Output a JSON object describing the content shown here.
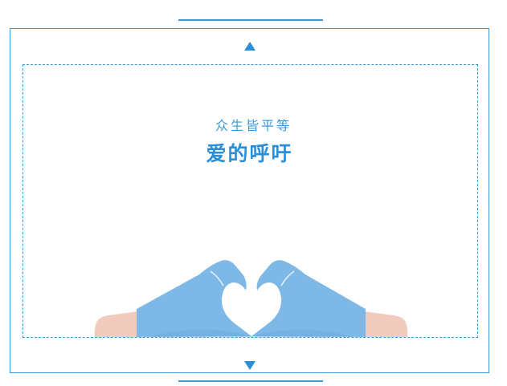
{
  "card": {
    "subtitle": "众生皆平等",
    "title": "爱的呼吁"
  },
  "colors": {
    "accent": "#2a8fd6",
    "frame": "#3a9ad9",
    "glove": "#7eb8e6",
    "skin": "#f2cbbf"
  },
  "icons": {
    "top": "triangle-up-icon",
    "bottom": "triangle-down-icon",
    "illustration": "heart-hands-icon"
  }
}
